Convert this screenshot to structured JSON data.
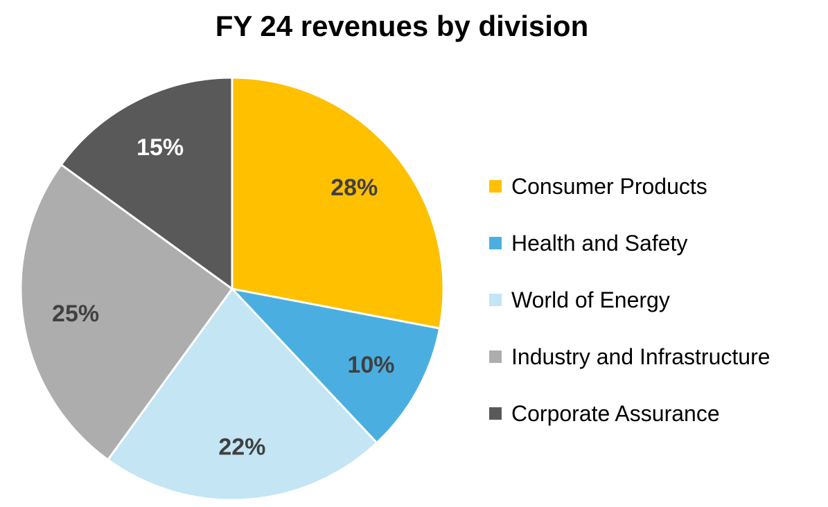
{
  "chart_data": {
    "type": "pie",
    "title": "FY 24 revenues by division",
    "legend_position": "right",
    "slices": [
      {
        "name": "Consumer Products",
        "value": 28,
        "label": "28%",
        "color": "#FFC000",
        "label_color": "#404040"
      },
      {
        "name": "Health and Safety",
        "value": 10,
        "label": "10%",
        "color": "#4AAFE0",
        "label_color": "#404040"
      },
      {
        "name": "World of Energy",
        "value": 22,
        "label": "22%",
        "color": "#C3E5F4",
        "label_color": "#404040"
      },
      {
        "name": "Industry and Infrastructure",
        "value": 25,
        "label": "25%",
        "color": "#ADADAD",
        "label_color": "#404040"
      },
      {
        "name": "Corporate Assurance",
        "value": 15,
        "label": "15%",
        "color": "#595959",
        "label_color": "#FFFFFF"
      }
    ]
  }
}
